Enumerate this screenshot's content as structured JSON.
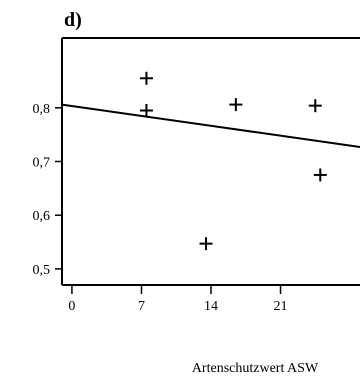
{
  "chart_data": {
    "type": "scatter",
    "panel_label": "d)",
    "title": "",
    "xlabel": "Artenschutzwert ASW",
    "ylabel": "",
    "xlim": [
      -1,
      29
    ],
    "ylim": [
      0.47,
      0.93
    ],
    "x_ticks": [
      0,
      7,
      14,
      21
    ],
    "x_tick_labels": [
      "0",
      "7",
      "14",
      "21"
    ],
    "y_ticks": [
      0.5,
      0.6,
      0.7,
      0.8
    ],
    "y_tick_labels": [
      "0,5",
      "0,6",
      "0,7",
      "0,8"
    ],
    "grid": false,
    "legend": "none",
    "series": [
      {
        "marker": "plus",
        "points": [
          {
            "x": 7.5,
            "y": 0.855
          },
          {
            "x": 7.5,
            "y": 0.795
          },
          {
            "x": 13.5,
            "y": 0.547
          },
          {
            "x": 16.5,
            "y": 0.806
          },
          {
            "x": 24.5,
            "y": 0.804
          },
          {
            "x": 25.0,
            "y": 0.675
          }
        ]
      }
    ],
    "fit_line": {
      "x": [
        -1,
        29
      ],
      "y": [
        0.806,
        0.727
      ]
    },
    "colors": {
      "axis": "#000000",
      "marker": "#000000",
      "line": "#000000"
    }
  }
}
